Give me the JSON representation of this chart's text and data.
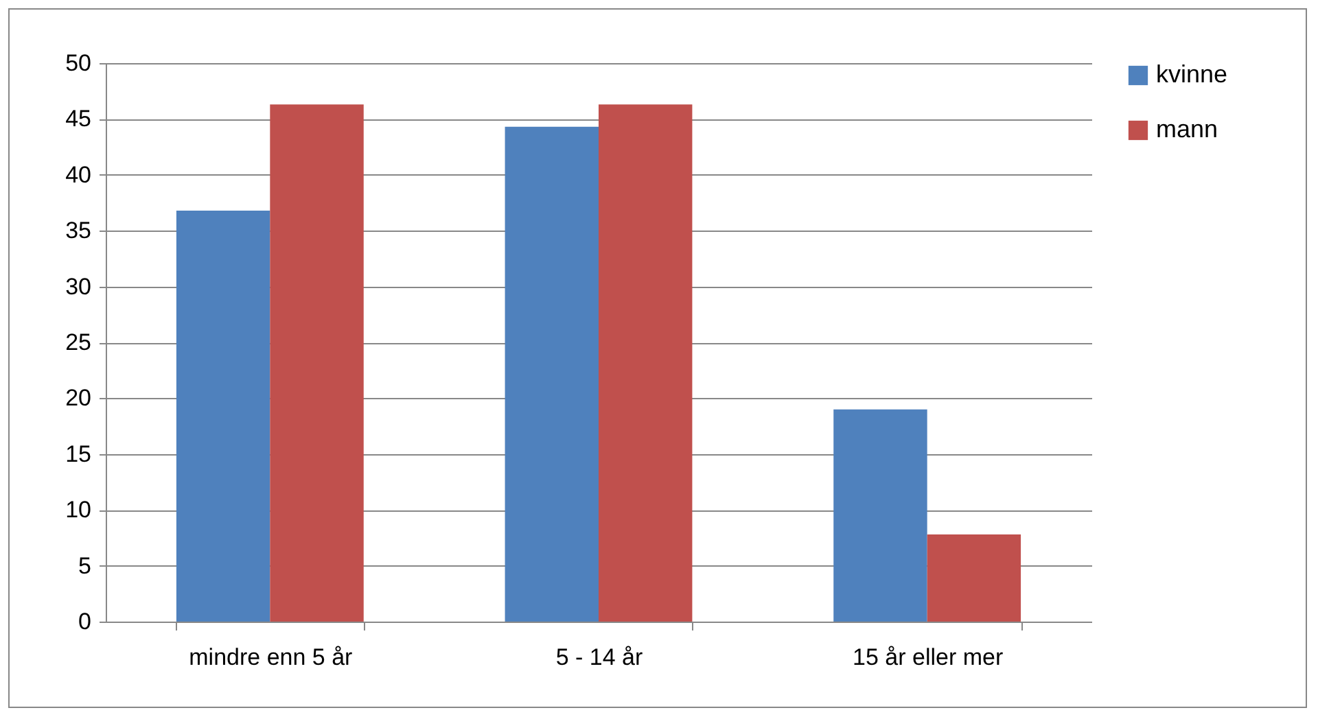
{
  "chart_data": {
    "type": "bar",
    "categories": [
      "mindre enn 5 år",
      "5 - 14 år",
      "15 år eller mer"
    ],
    "series": [
      {
        "name": "kvinne",
        "color": "#4f81bd",
        "values": [
          36.8,
          44.3,
          19
        ]
      },
      {
        "name": "mann",
        "color": "#c0504d",
        "values": [
          46.3,
          46.3,
          7.8
        ]
      }
    ],
    "ylim": [
      0,
      50
    ],
    "yticks": [
      0,
      5,
      10,
      15,
      20,
      25,
      30,
      35,
      40,
      45,
      50
    ],
    "grid": "y",
    "legend": "right"
  }
}
